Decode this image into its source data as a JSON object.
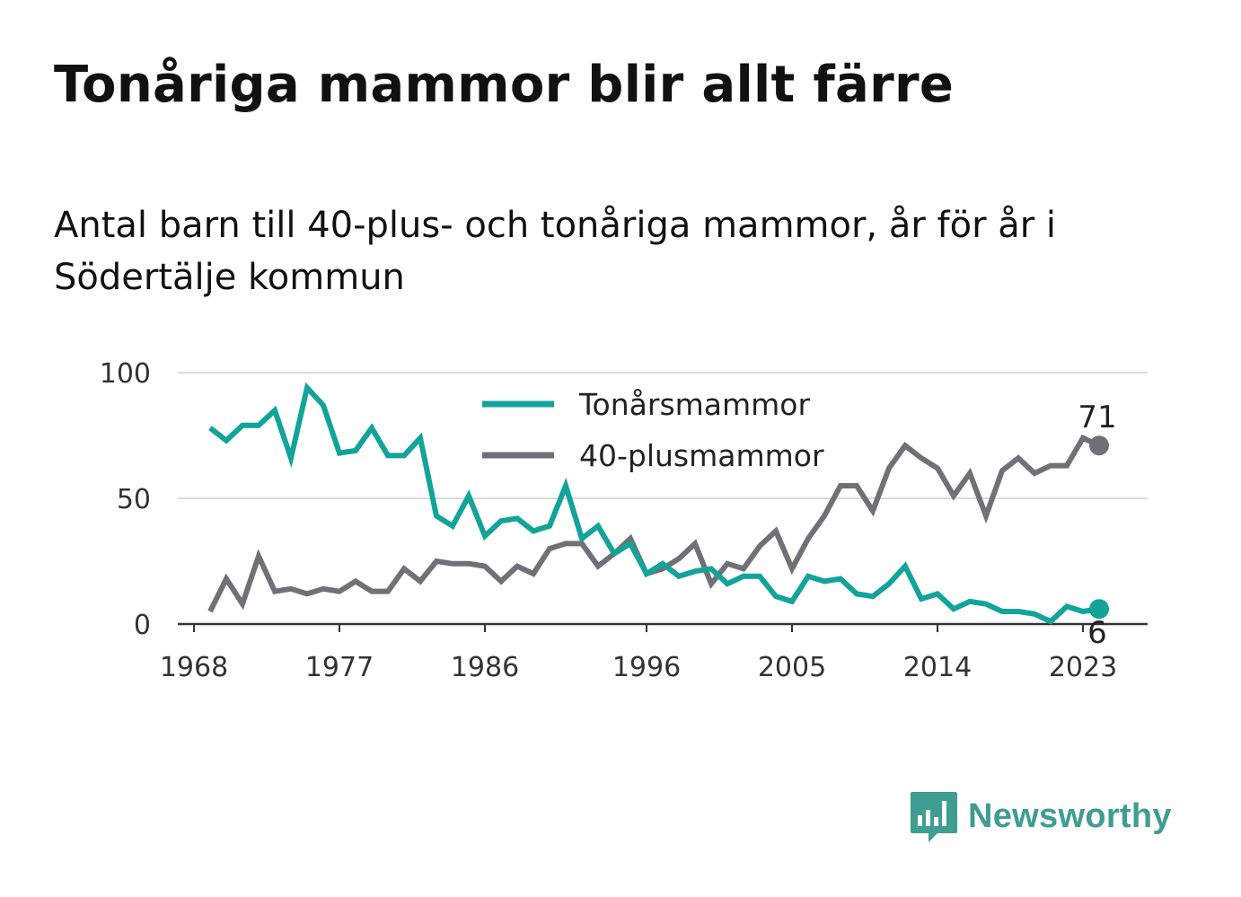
{
  "title": "Tonåriga mammor blir allt färre",
  "subtitle": "Antal barn till 40-plus- och tonåriga mammor, år för år i Södertälje kommun",
  "brand": {
    "name": "Newsworthy",
    "color": "#3f9d91",
    "icon": "bar-chart-speech-bubble-icon"
  },
  "chart_data": {
    "type": "line",
    "x": [
      1969,
      1970,
      1971,
      1972,
      1973,
      1974,
      1975,
      1976,
      1977,
      1978,
      1979,
      1980,
      1981,
      1982,
      1983,
      1984,
      1985,
      1986,
      1987,
      1988,
      1989,
      1990,
      1991,
      1992,
      1993,
      1994,
      1995,
      1996,
      1997,
      1998,
      1999,
      2000,
      2001,
      2002,
      2003,
      2004,
      2005,
      2006,
      2007,
      2008,
      2009,
      2010,
      2011,
      2012,
      2013,
      2014,
      2015,
      2016,
      2017,
      2018,
      2019,
      2020,
      2021,
      2022,
      2023,
      2024
    ],
    "series": [
      {
        "name": "Tonårsmammor",
        "color": "#12a39a",
        "values": [
          78,
          73,
          79,
          79,
          85,
          66,
          94,
          87,
          68,
          69,
          78,
          67,
          67,
          74,
          43,
          39,
          51,
          35,
          41,
          42,
          37,
          39,
          55,
          34,
          39,
          28,
          32,
          20,
          24,
          19,
          21,
          22,
          16,
          19,
          19,
          11,
          9,
          19,
          17,
          18,
          12,
          11,
          16,
          23,
          10,
          12,
          6,
          9,
          8,
          5,
          5,
          4,
          1,
          7,
          5,
          6
        ]
      },
      {
        "name": "40-plusmammor",
        "color": "#717078",
        "values": [
          5,
          18,
          8,
          27,
          13,
          14,
          12,
          14,
          13,
          17,
          13,
          13,
          22,
          17,
          25,
          24,
          24,
          23,
          17,
          23,
          20,
          30,
          32,
          32,
          23,
          28,
          34,
          20,
          22,
          26,
          32,
          16,
          24,
          22,
          31,
          37,
          22,
          34,
          43,
          55,
          55,
          45,
          62,
          71,
          66,
          62,
          51,
          60,
          43,
          61,
          66,
          60,
          63,
          63,
          74,
          71
        ]
      }
    ],
    "xlim": [
      1967,
      2027
    ],
    "ylim": [
      0,
      100
    ],
    "yticks": [
      0,
      50,
      100
    ],
    "xticks": [
      1968,
      1977,
      1986,
      1996,
      2005,
      2014,
      2023
    ],
    "end_labels": [
      "71",
      "6"
    ],
    "grid": "horizontal",
    "legend": "top-center",
    "legend_labels": [
      "Tonårsmammor",
      "40-plusmammor"
    ]
  }
}
